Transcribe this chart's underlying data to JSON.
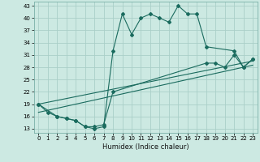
{
  "xlabel": "Humidex (Indice chaleur)",
  "xlim": [
    -0.5,
    23.5
  ],
  "ylim": [
    12,
    44
  ],
  "yticks": [
    13,
    16,
    19,
    22,
    25,
    28,
    31,
    34,
    37,
    40,
    43
  ],
  "xticks": [
    0,
    1,
    2,
    3,
    4,
    5,
    6,
    7,
    8,
    9,
    10,
    11,
    12,
    13,
    14,
    15,
    16,
    17,
    18,
    19,
    20,
    21,
    22,
    23
  ],
  "bg_color": "#cce9e2",
  "grid_color": "#aacfc8",
  "line_color": "#1a6b5e",
  "series1_x": [
    0,
    1,
    2,
    3,
    4,
    5,
    6,
    7,
    8,
    9,
    10,
    11,
    12,
    13,
    14,
    15,
    16,
    17,
    18,
    21,
    22,
    23
  ],
  "series1_y": [
    19,
    17,
    16,
    15.5,
    15,
    13.5,
    13,
    13.5,
    32,
    41,
    36,
    40,
    41,
    40,
    39,
    43,
    41,
    41,
    33,
    32,
    28,
    30
  ],
  "series2_x": [
    0,
    2,
    3,
    4,
    5,
    6,
    7,
    8,
    18,
    19,
    20,
    21,
    22,
    23
  ],
  "series2_y": [
    19,
    16,
    15.5,
    15,
    13.5,
    13.5,
    14,
    22,
    29,
    29,
    28,
    31,
    28,
    30
  ],
  "series3_x": [
    0,
    23
  ],
  "series3_y": [
    19,
    29.5
  ],
  "series4_x": [
    0,
    23
  ],
  "series4_y": [
    17,
    28.5
  ]
}
